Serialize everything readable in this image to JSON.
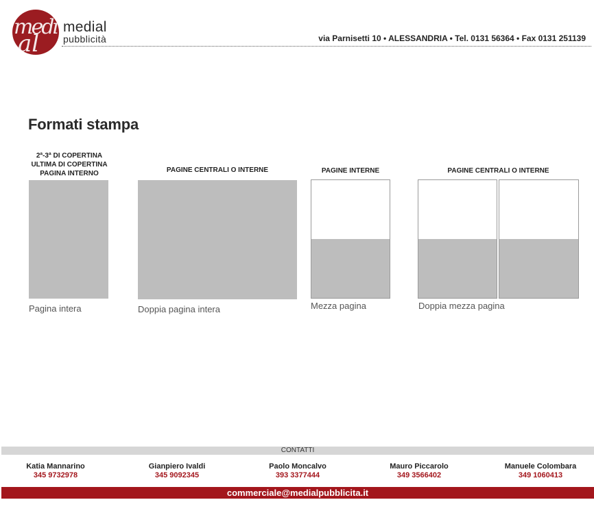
{
  "header": {
    "logo_letters_top": "medi",
    "logo_letters_bottom": "al",
    "brand_name": "medial",
    "brand_sub": "pubblicità",
    "address": "via Parnisetti 10 • ALESSANDRIA • Tel. 0131 56364 • Fax 0131 251139"
  },
  "title": "Formati stampa",
  "formats": [
    {
      "heading_lines": [
        "2ª-3ª DI COPERTINA",
        "ULTIMA DI COPERTINA",
        "PAGINA INTERNO"
      ],
      "label": "Pagina intera"
    },
    {
      "heading_lines": [
        "PAGINE CENTRALI O INTERNE"
      ],
      "label": "Doppia pagina intera"
    },
    {
      "heading_lines": [
        "PAGINE INTERNE"
      ],
      "label": "Mezza pagina",
      "filled_fraction": 0.5
    },
    {
      "heading_lines": [
        "PAGINE CENTRALI O INTERNE"
      ],
      "label": "Doppia mezza pagina",
      "filled_fraction": 0.5
    }
  ],
  "footer": {
    "contacts_title": "CONTATTI",
    "contacts": [
      {
        "name": "Katia Mannarino",
        "phone": "345 9732978"
      },
      {
        "name": "Gianpiero Ivaldi",
        "phone": "345 9092345"
      },
      {
        "name": "Paolo Moncalvo",
        "phone": "393 3377444"
      },
      {
        "name": "Mauro Piccarolo",
        "phone": "349 3566402"
      },
      {
        "name": "Manuele Colombara",
        "phone": "349 1060413"
      }
    ],
    "email": "commerciale@medialpubblicita.it"
  },
  "colors": {
    "brand_red": "#a3161c",
    "box_gray": "#bdbdbd"
  }
}
